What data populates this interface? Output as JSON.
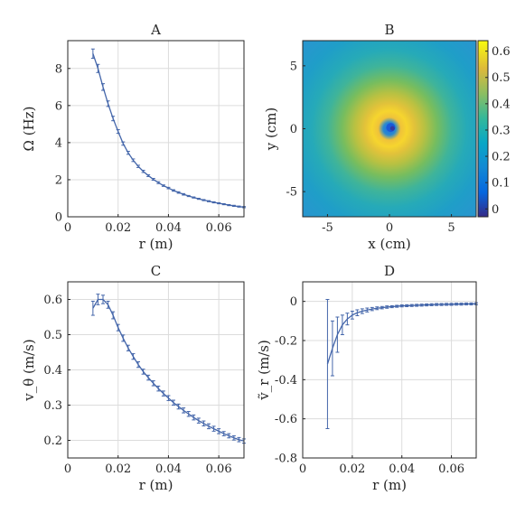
{
  "figure": {
    "panels": [
      "A",
      "B",
      "C",
      "D"
    ]
  },
  "chart_data": [
    {
      "id": "A",
      "type": "line",
      "title": "A",
      "xlabel": "r (m)",
      "ylabel": "Ω (Hz)",
      "xlim": [
        0,
        0.07
      ],
      "ylim": [
        0,
        9.5
      ],
      "xticks": [
        0,
        0.02,
        0.04,
        0.06
      ],
      "xtick_labels": [
        "0",
        "0.02",
        "0.04",
        "0.06"
      ],
      "yticks": [
        0,
        2,
        4,
        6,
        8
      ],
      "ytick_labels": [
        "0",
        "2",
        "4",
        "6",
        "8"
      ],
      "grid": true,
      "color": "#4466aa",
      "x": [
        0.01,
        0.012,
        0.014,
        0.016,
        0.018,
        0.02,
        0.022,
        0.024,
        0.026,
        0.028,
        0.03,
        0.032,
        0.034,
        0.036,
        0.038,
        0.04,
        0.042,
        0.044,
        0.046,
        0.048,
        0.05,
        0.052,
        0.054,
        0.056,
        0.058,
        0.06,
        0.062,
        0.064,
        0.066,
        0.068,
        0.07
      ],
      "y": [
        8.8,
        8.0,
        7.0,
        6.1,
        5.3,
        4.6,
        3.95,
        3.45,
        3.05,
        2.72,
        2.45,
        2.22,
        2.02,
        1.84,
        1.68,
        1.55,
        1.42,
        1.31,
        1.21,
        1.12,
        1.04,
        0.97,
        0.9,
        0.84,
        0.78,
        0.73,
        0.68,
        0.63,
        0.59,
        0.55,
        0.52
      ],
      "err": [
        0.25,
        0.22,
        0.18,
        0.15,
        0.12,
        0.1,
        0.09,
        0.08,
        0.07,
        0.06,
        0.06,
        0.05,
        0.05,
        0.05,
        0.04,
        0.04,
        0.04,
        0.04,
        0.04,
        0.03,
        0.03,
        0.03,
        0.03,
        0.03,
        0.03,
        0.03,
        0.03,
        0.03,
        0.03,
        0.03,
        0.03
      ]
    },
    {
      "id": "B",
      "type": "heatmap",
      "title": "B",
      "xlabel": "x (cm)",
      "ylabel": "y (cm)",
      "xlim": [
        -7,
        7
      ],
      "ylim": [
        7,
        -7
      ],
      "xticks": [
        -5,
        0,
        5
      ],
      "xtick_labels": [
        "-5",
        "0",
        "5"
      ],
      "yticks": [
        -5,
        0,
        5
      ],
      "ytick_labels": [
        "-5",
        "0",
        "5"
      ],
      "colorbar": {
        "min": -0.03,
        "max": 0.64,
        "ticks": [
          0,
          0.1,
          0.2,
          0.3,
          0.4,
          0.5,
          0.6
        ],
        "tick_labels": [
          "0",
          "0.1",
          "0.2",
          "0.3",
          "0.4",
          "0.5",
          "0.6"
        ]
      },
      "colormap": "parula",
      "description_values": {
        "center": [
          0.1,
          0.1
        ],
        "peak_value": 0.6,
        "peak_radius_cm": 1.2,
        "core_value": 0.05,
        "edge_value": 0.2
      }
    },
    {
      "id": "C",
      "type": "line",
      "title": "C",
      "xlabel": "r (m)",
      "ylabel": "v_θ (m/s)",
      "xlim": [
        0,
        0.07
      ],
      "ylim": [
        0.15,
        0.65
      ],
      "xticks": [
        0,
        0.02,
        0.04,
        0.06
      ],
      "xtick_labels": [
        "0",
        "0.02",
        "0.04",
        "0.06"
      ],
      "yticks": [
        0.2,
        0.3,
        0.4,
        0.5,
        0.6
      ],
      "ytick_labels": [
        "0.2",
        "0.3",
        "0.4",
        "0.5",
        "0.6"
      ],
      "grid": true,
      "color": "#4466aa",
      "x": [
        0.01,
        0.012,
        0.014,
        0.016,
        0.018,
        0.02,
        0.022,
        0.024,
        0.026,
        0.028,
        0.03,
        0.032,
        0.034,
        0.036,
        0.038,
        0.04,
        0.042,
        0.044,
        0.046,
        0.048,
        0.05,
        0.052,
        0.054,
        0.056,
        0.058,
        0.06,
        0.062,
        0.064,
        0.066,
        0.068,
        0.07
      ],
      "y": [
        0.575,
        0.6,
        0.6,
        0.585,
        0.555,
        0.52,
        0.49,
        0.462,
        0.438,
        0.415,
        0.395,
        0.378,
        0.362,
        0.347,
        0.333,
        0.32,
        0.307,
        0.296,
        0.285,
        0.275,
        0.265,
        0.256,
        0.248,
        0.24,
        0.233,
        0.226,
        0.219,
        0.213,
        0.207,
        0.202,
        0.198
      ],
      "err": [
        0.02,
        0.015,
        0.012,
        0.01,
        0.01,
        0.009,
        0.009,
        0.008,
        0.008,
        0.008,
        0.007,
        0.007,
        0.007,
        0.007,
        0.007,
        0.007,
        0.007,
        0.007,
        0.007,
        0.007,
        0.007,
        0.007,
        0.007,
        0.007,
        0.007,
        0.007,
        0.006,
        0.006,
        0.006,
        0.006,
        0.006
      ]
    },
    {
      "id": "D",
      "type": "line",
      "title": "D",
      "xlabel": "r (m)",
      "ylabel": "ṽ_r (m/s)",
      "xlim": [
        0,
        0.07
      ],
      "ylim": [
        -0.8,
        0.1
      ],
      "xticks": [
        0,
        0.02,
        0.04,
        0.06
      ],
      "xtick_labels": [
        "0",
        "0.02",
        "0.04",
        "0.06"
      ],
      "yticks": [
        -0.8,
        -0.6,
        -0.4,
        -0.2,
        0
      ],
      "ytick_labels": [
        "-0.8",
        "-0.6",
        "-0.4",
        "-0.2",
        "0"
      ],
      "grid": true,
      "color": "#4466aa",
      "x": [
        0.01,
        0.012,
        0.014,
        0.016,
        0.018,
        0.02,
        0.022,
        0.024,
        0.026,
        0.028,
        0.03,
        0.032,
        0.034,
        0.036,
        0.038,
        0.04,
        0.042,
        0.044,
        0.046,
        0.048,
        0.05,
        0.052,
        0.054,
        0.056,
        0.058,
        0.06,
        0.062,
        0.064,
        0.066,
        0.068,
        0.07
      ],
      "y": [
        -0.32,
        -0.24,
        -0.17,
        -0.12,
        -0.09,
        -0.07,
        -0.058,
        -0.05,
        -0.044,
        -0.039,
        -0.035,
        -0.032,
        -0.029,
        -0.027,
        -0.025,
        -0.023,
        -0.022,
        -0.021,
        -0.02,
        -0.019,
        -0.018,
        -0.017,
        -0.016,
        -0.016,
        -0.015,
        -0.015,
        -0.014,
        -0.014,
        -0.013,
        -0.013,
        -0.012
      ],
      "err": [
        0.33,
        0.14,
        0.09,
        0.05,
        0.03,
        0.02,
        0.015,
        0.012,
        0.01,
        0.008,
        0.007,
        0.006,
        0.006,
        0.005,
        0.005,
        0.005,
        0.005,
        0.005,
        0.005,
        0.005,
        0.005,
        0.005,
        0.005,
        0.005,
        0.005,
        0.005,
        0.005,
        0.005,
        0.005,
        0.005,
        0.005
      ]
    }
  ]
}
